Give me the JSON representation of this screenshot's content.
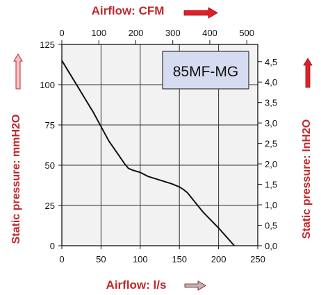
{
  "chart_data": {
    "type": "line",
    "model_label": "85MF-MG",
    "x_bottom": {
      "label": "Airflow: l/s",
      "range": [
        0,
        250
      ],
      "ticks": [
        "0",
        "50",
        "100",
        "150",
        "200",
        "250"
      ]
    },
    "x_top": {
      "label": "Airflow: CFM",
      "range": [
        0,
        529.7
      ],
      "ticks": [
        "0",
        "100",
        "200",
        "300",
        "400",
        "500"
      ]
    },
    "y_left": {
      "label": "Static pressure: mmH2O",
      "range": [
        0,
        125
      ],
      "ticks": [
        "0",
        "25",
        "50",
        "75",
        "100",
        "125"
      ]
    },
    "y_right": {
      "label": "Static pressure: InH2O",
      "range": [
        0,
        4.92
      ],
      "ticks": [
        "0,0",
        "0,5",
        "1,0",
        "1,5",
        "2,0",
        "2,5",
        "3,0",
        "3,5",
        "4,0",
        "4,5"
      ]
    },
    "grid": true,
    "series": [
      {
        "x": [
          0,
          10,
          20,
          30,
          40,
          50,
          60,
          70,
          80,
          85,
          90,
          100,
          110,
          120,
          130,
          140,
          150,
          155,
          160,
          170,
          180,
          190,
          200,
          210,
          220
        ],
        "y": [
          115,
          107,
          99,
          91,
          83,
          74,
          65,
          58,
          51,
          48,
          47,
          45.5,
          43,
          41.5,
          40,
          38.5,
          36.5,
          35,
          33,
          27,
          21,
          16,
          11,
          5.5,
          0
        ]
      }
    ],
    "colors": {
      "curve": "#111111",
      "grid": "#333333",
      "plot_bg": "#f2f2f2",
      "label_box": "#d6dcef",
      "title": "#c0272d",
      "arrow_red": "#e41e26",
      "arrow_grey": "#b8b8b8"
    }
  }
}
